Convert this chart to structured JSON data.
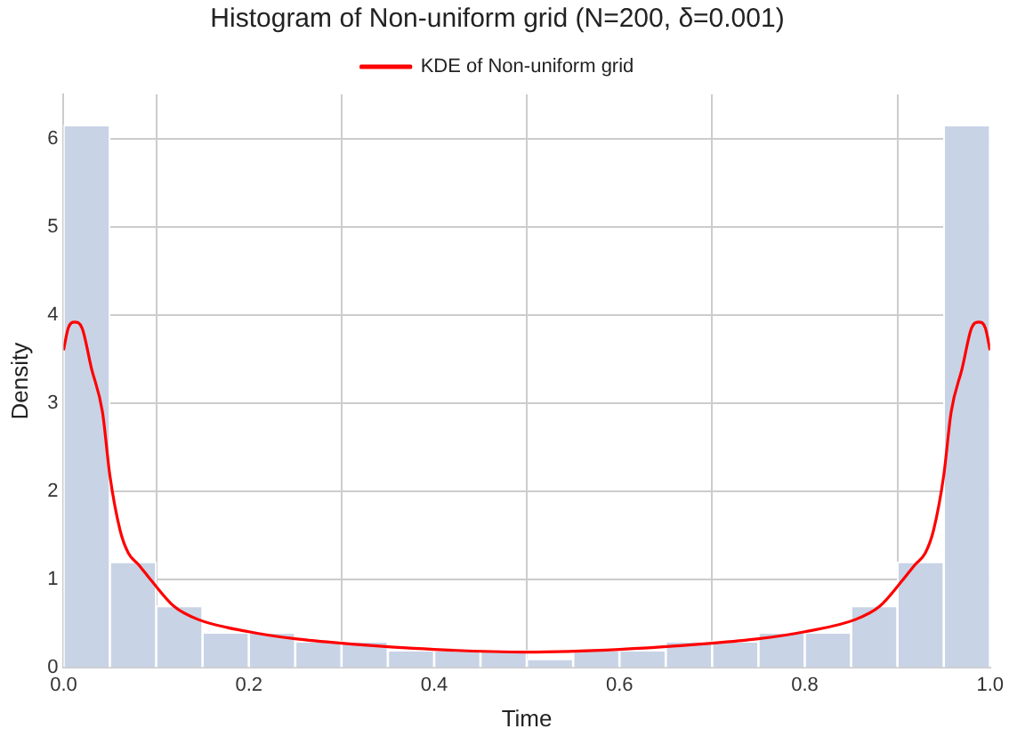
{
  "chart_data": {
    "type": "histogram",
    "title": "Histogram of Non-uniform grid (N=200, δ=0.001)",
    "xlabel": "Time",
    "ylabel": "Density",
    "bins": [
      0,
      0.05,
      0.1,
      0.15,
      0.2,
      0.25,
      0.3,
      0.35,
      0.4,
      0.45,
      0.5,
      0.55,
      0.6,
      0.65,
      0.7,
      0.75,
      0.8,
      0.85,
      0.9,
      0.95,
      1
    ],
    "values": [
      6.15,
      1.2,
      0.7,
      0.4,
      0.4,
      0.3,
      0.3,
      0.2,
      0.2,
      0.2,
      0.1,
      0.2,
      0.2,
      0.3,
      0.3,
      0.4,
      0.4,
      0.7,
      1.2,
      6.15
    ],
    "color": "#c8d3e5",
    "series": [
      {
        "type": "line",
        "name": "KDE of Non-uniform grid",
        "color": "#ff0000",
        "x": [
          0,
          0.005,
          0.012,
          0.02,
          0.03,
          0.042,
          0.05,
          0.061,
          0.07,
          0.081,
          0.094,
          0.119,
          0.145,
          0.2,
          0.25,
          0.3,
          0.4,
          0.5,
          0.6,
          0.7,
          0.75,
          0.8,
          0.855,
          0.881,
          0.906,
          0.919,
          0.93,
          0.939,
          0.95,
          0.958,
          0.97,
          0.98,
          0.988,
          0.995,
          1
        ],
        "values": [
          3.6,
          3.85,
          3.92,
          3.85,
          3.4,
          2.9,
          2.18,
          1.56,
          1.3,
          1.17,
          1.0,
          0.7,
          0.55,
          0.41,
          0.33,
          0.28,
          0.21,
          0.18,
          0.21,
          0.28,
          0.33,
          0.41,
          0.55,
          0.7,
          1.0,
          1.17,
          1.3,
          1.56,
          2.18,
          2.9,
          3.4,
          3.85,
          3.92,
          3.85,
          3.6
        ]
      }
    ],
    "xlim": [
      0,
      1
    ],
    "xticks": [
      {
        "value": 0,
        "label": "0.0"
      },
      0.2,
      0.4,
      0.6,
      0.8,
      {
        "value": 1,
        "label": "1.0"
      }
    ],
    "ylim": [
      0,
      6.5
    ],
    "yticks": [
      0,
      1,
      2,
      3,
      4,
      5,
      6
    ],
    "grid": true,
    "legend": "top"
  }
}
